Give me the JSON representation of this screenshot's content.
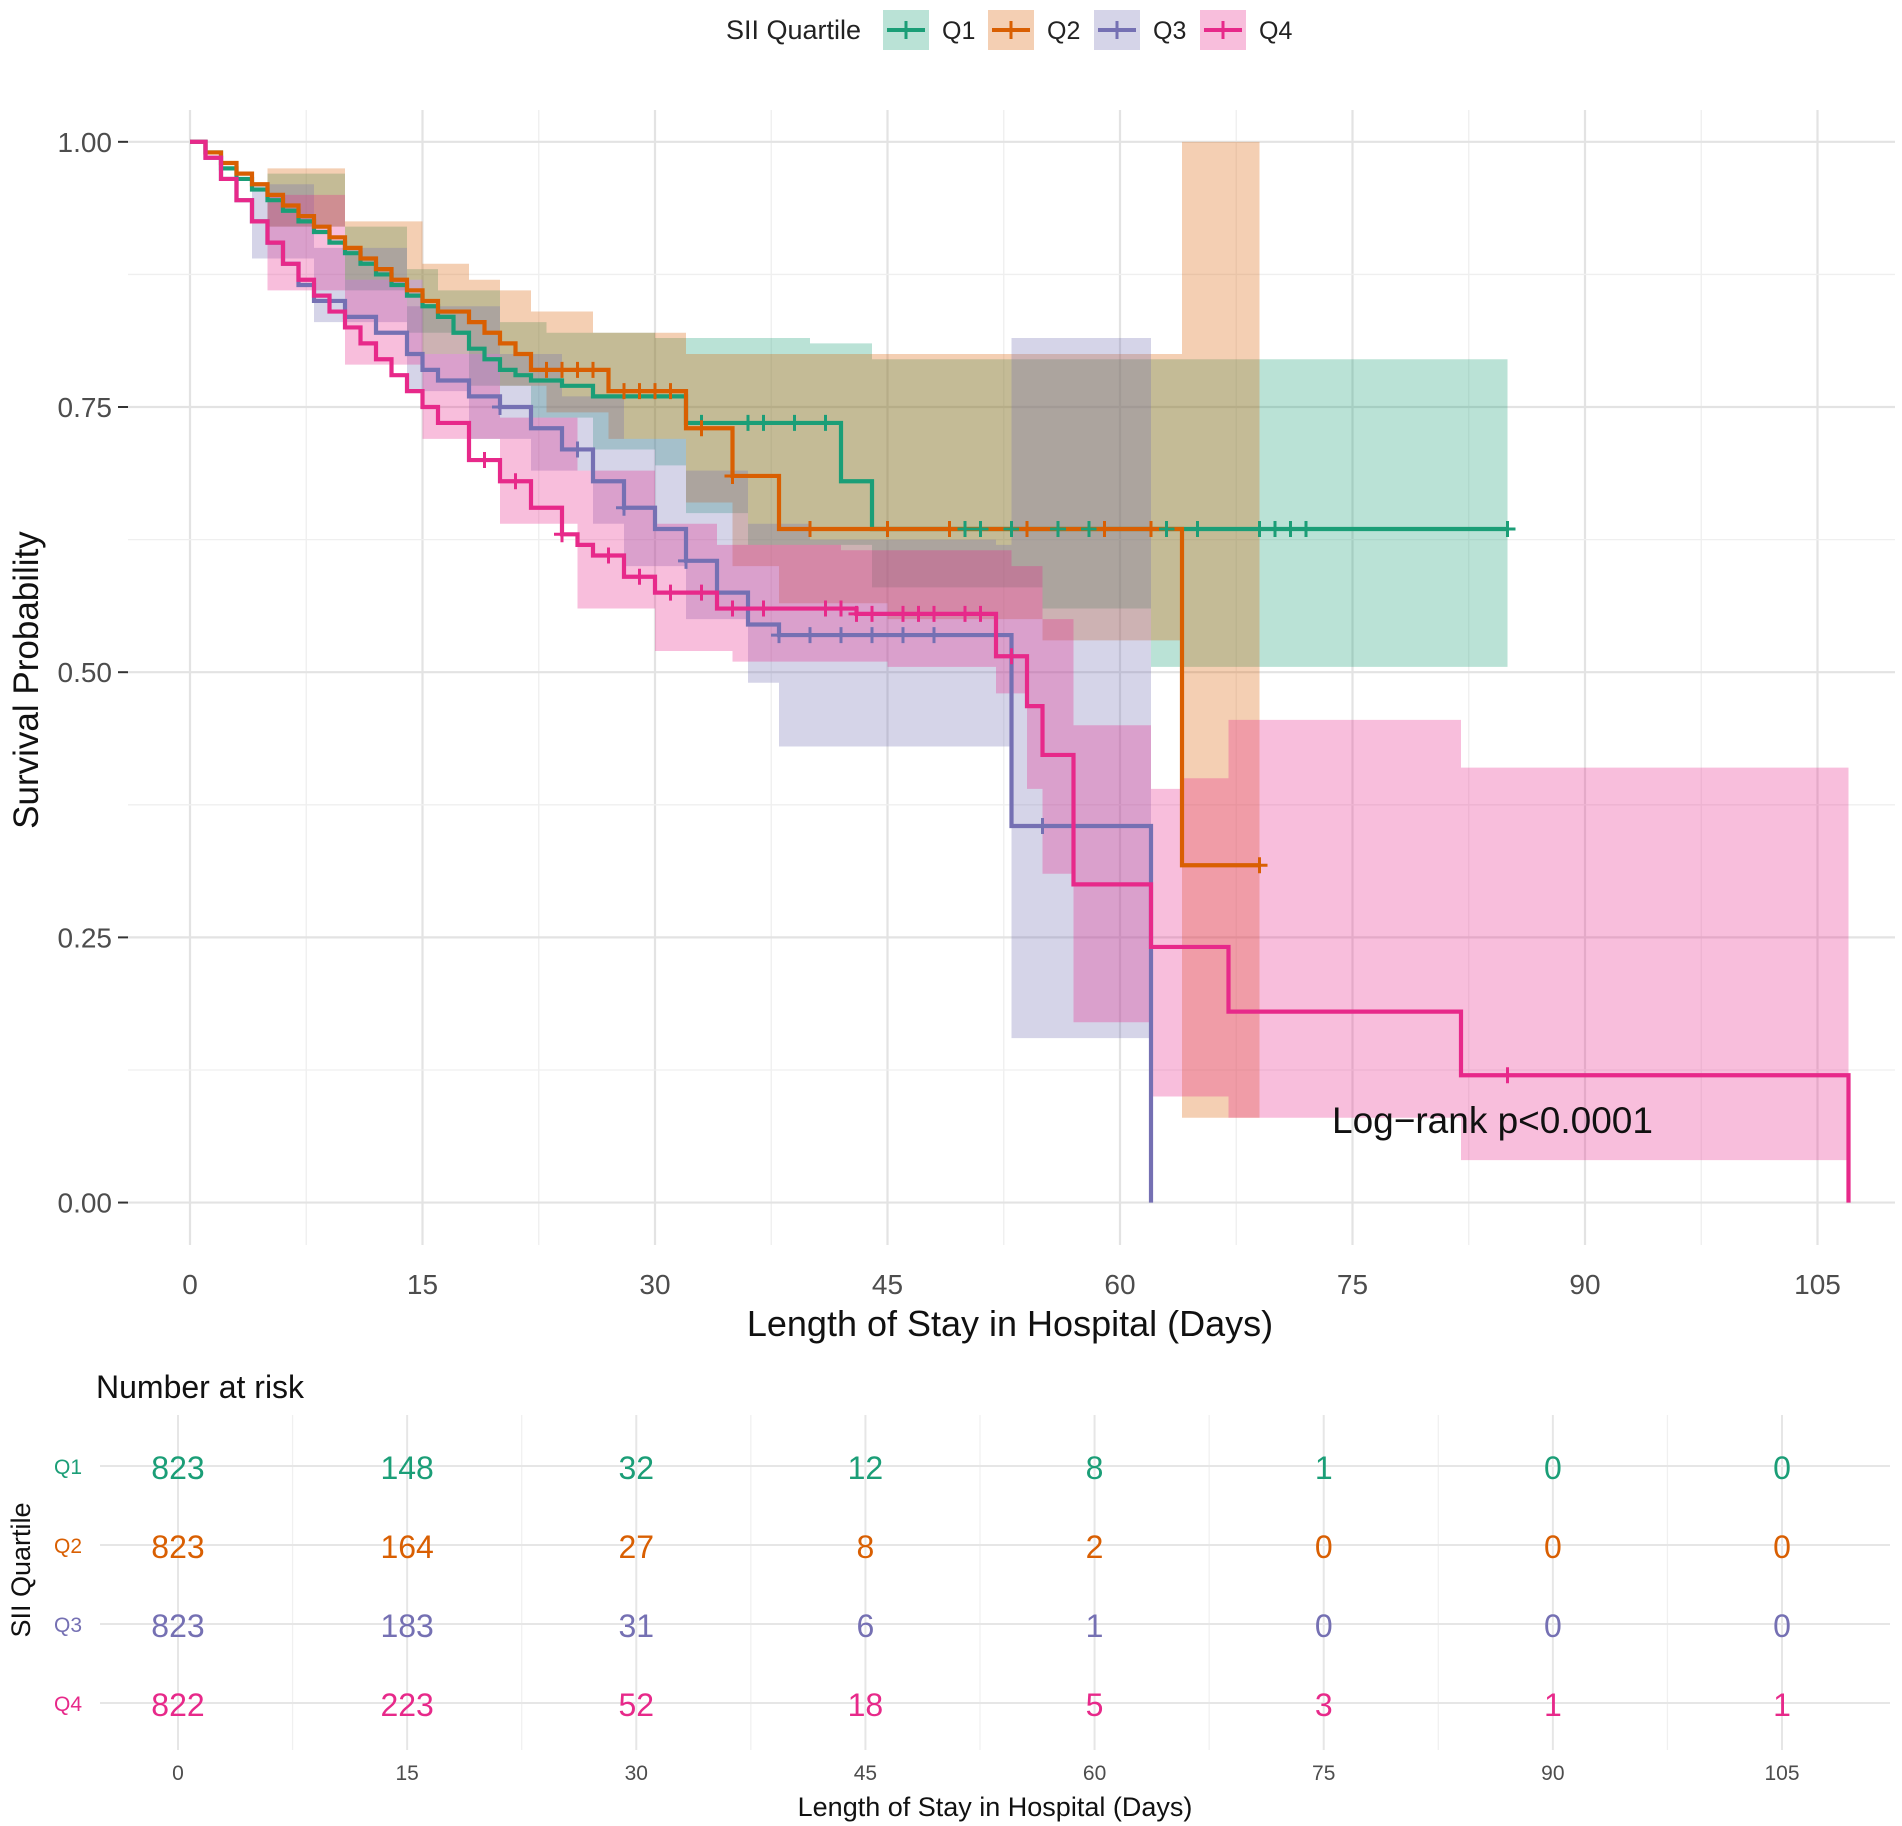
{
  "chart_data": [
    {
      "type": "line",
      "subtype": "kaplan-meier",
      "title": "",
      "xlabel": "Length of Stay in Hospital (Days)",
      "ylabel": "Survival Probability",
      "xlim": [
        -4,
        110
      ],
      "ylim": [
        -0.04,
        1.03
      ],
      "x_ticks": [
        0,
        15,
        30,
        45,
        60,
        75,
        90,
        105
      ],
      "x_tick_labels": [
        "0",
        "15",
        "30",
        "45",
        "60",
        "75",
        "90",
        "105"
      ],
      "y_ticks": [
        0,
        0.25,
        0.5,
        0.75,
        1
      ],
      "y_tick_labels": [
        "0.00",
        "0.25",
        "0.50",
        "0.75",
        "1.00"
      ],
      "grid": true,
      "legend": {
        "title": "SII Quartile",
        "position": "top",
        "labels": [
          "Q1",
          "Q2",
          "Q3",
          "Q4"
        ]
      },
      "annotation": "Log−rank p<0.0001",
      "series": [
        {
          "name": "Q1",
          "color": "#1b9e77",
          "steps": [
            [
              0,
              1.0
            ],
            [
              1,
              0.99
            ],
            [
              2,
              0.975
            ],
            [
              3,
              0.965
            ],
            [
              4,
              0.955
            ],
            [
              5,
              0.945
            ],
            [
              6,
              0.935
            ],
            [
              7,
              0.925
            ],
            [
              8,
              0.915
            ],
            [
              9,
              0.905
            ],
            [
              10,
              0.895
            ],
            [
              11,
              0.885
            ],
            [
              12,
              0.875
            ],
            [
              13,
              0.865
            ],
            [
              14,
              0.855
            ],
            [
              15,
              0.845
            ],
            [
              16,
              0.835
            ],
            [
              17,
              0.82
            ],
            [
              18,
              0.805
            ],
            [
              19,
              0.795
            ],
            [
              20,
              0.785
            ],
            [
              21,
              0.78
            ],
            [
              22,
              0.775
            ],
            [
              24,
              0.77
            ],
            [
              26,
              0.76
            ],
            [
              32,
              0.735
            ],
            [
              42,
              0.68
            ],
            [
              44,
              0.635
            ],
            [
              85,
              0.635
            ]
          ],
          "censored_x": [
            33,
            36,
            37,
            39,
            41,
            45,
            50,
            51,
            53,
            56,
            58,
            63,
            65,
            69,
            70,
            71,
            72,
            85
          ],
          "ci_upper": [
            [
              0,
              1.0
            ],
            [
              5,
              0.97
            ],
            [
              10,
              0.92
            ],
            [
              14,
              0.88
            ],
            [
              16,
              0.86
            ],
            [
              20,
              0.83
            ],
            [
              23,
              0.82
            ],
            [
              30,
              0.815
            ],
            [
              40,
              0.81
            ],
            [
              44,
              0.795
            ],
            [
              85,
              0.795
            ]
          ],
          "ci_lower": [
            [
              0,
              1.0
            ],
            [
              5,
              0.92
            ],
            [
              10,
              0.86
            ],
            [
              14,
              0.82
            ],
            [
              18,
              0.77
            ],
            [
              22,
              0.74
            ],
            [
              26,
              0.71
            ],
            [
              30,
              0.695
            ],
            [
              32,
              0.65
            ],
            [
              36,
              0.62
            ],
            [
              44,
              0.58
            ],
            [
              55,
              0.56
            ],
            [
              62,
              0.505
            ],
            [
              85,
              0.505
            ]
          ]
        },
        {
          "name": "Q2",
          "color": "#d95f02",
          "steps": [
            [
              0,
              1.0
            ],
            [
              1,
              0.99
            ],
            [
              2,
              0.98
            ],
            [
              3,
              0.97
            ],
            [
              4,
              0.96
            ],
            [
              5,
              0.95
            ],
            [
              6,
              0.94
            ],
            [
              7,
              0.93
            ],
            [
              8,
              0.92
            ],
            [
              9,
              0.91
            ],
            [
              10,
              0.9
            ],
            [
              11,
              0.89
            ],
            [
              12,
              0.88
            ],
            [
              13,
              0.87
            ],
            [
              14,
              0.86
            ],
            [
              15,
              0.85
            ],
            [
              16,
              0.84
            ],
            [
              18,
              0.83
            ],
            [
              19,
              0.82
            ],
            [
              20,
              0.81
            ],
            [
              21,
              0.8
            ],
            [
              22,
              0.785
            ],
            [
              27,
              0.765
            ],
            [
              32,
              0.73
            ],
            [
              35,
              0.685
            ],
            [
              38,
              0.635
            ],
            [
              64,
              0.318
            ],
            [
              69,
              0.318
            ]
          ],
          "censored_x": [
            23,
            24,
            25,
            26,
            28,
            29,
            30,
            31,
            33,
            35,
            40,
            45,
            49,
            54,
            59,
            62,
            69
          ],
          "ci_upper": [
            [
              0,
              1.0
            ],
            [
              5,
              0.975
            ],
            [
              10,
              0.925
            ],
            [
              15,
              0.885
            ],
            [
              18,
              0.87
            ],
            [
              20,
              0.86
            ],
            [
              22,
              0.84
            ],
            [
              26,
              0.82
            ],
            [
              32,
              0.8
            ],
            [
              38,
              0.8
            ],
            [
              64,
              1.0
            ],
            [
              69,
              1.0
            ]
          ],
          "ci_lower": [
            [
              0,
              1.0
            ],
            [
              5,
              0.92
            ],
            [
              10,
              0.87
            ],
            [
              15,
              0.8
            ],
            [
              20,
              0.77
            ],
            [
              23,
              0.745
            ],
            [
              27,
              0.72
            ],
            [
              32,
              0.66
            ],
            [
              35,
              0.6
            ],
            [
              38,
              0.565
            ],
            [
              45,
              0.55
            ],
            [
              55,
              0.53
            ],
            [
              64,
              0.08
            ],
            [
              69,
              0.08
            ]
          ]
        },
        {
          "name": "Q3",
          "color": "#7570b3",
          "steps": [
            [
              0,
              1.0
            ],
            [
              1,
              0.985
            ],
            [
              2,
              0.965
            ],
            [
              3,
              0.945
            ],
            [
              4,
              0.925
            ],
            [
              5,
              0.905
            ],
            [
              6,
              0.885
            ],
            [
              7,
              0.865
            ],
            [
              8,
              0.85
            ],
            [
              10,
              0.835
            ],
            [
              12,
              0.82
            ],
            [
              14,
              0.8
            ],
            [
              15,
              0.785
            ],
            [
              16,
              0.775
            ],
            [
              18,
              0.76
            ],
            [
              20,
              0.75
            ],
            [
              22,
              0.73
            ],
            [
              24,
              0.71
            ],
            [
              26,
              0.68
            ],
            [
              28,
              0.655
            ],
            [
              30,
              0.635
            ],
            [
              32,
              0.605
            ],
            [
              34,
              0.575
            ],
            [
              36,
              0.545
            ],
            [
              38,
              0.535
            ],
            [
              53,
              0.355
            ],
            [
              62,
              0.0
            ]
          ],
          "censored_x": [
            20,
            25,
            28,
            32,
            38,
            40,
            42,
            44,
            46,
            48,
            55
          ],
          "ci_upper": [
            [
              0,
              1.0
            ],
            [
              4,
              0.96
            ],
            [
              8,
              0.9
            ],
            [
              14,
              0.845
            ],
            [
              20,
              0.8
            ],
            [
              24,
              0.76
            ],
            [
              28,
              0.72
            ],
            [
              32,
              0.69
            ],
            [
              36,
              0.64
            ],
            [
              40,
              0.625
            ],
            [
              52,
              0.62
            ],
            [
              53,
              0.815
            ],
            [
              62,
              0.815
            ]
          ],
          "ci_lower": [
            [
              0,
              1.0
            ],
            [
              4,
              0.89
            ],
            [
              8,
              0.83
            ],
            [
              14,
              0.765
            ],
            [
              18,
              0.72
            ],
            [
              22,
              0.69
            ],
            [
              26,
              0.64
            ],
            [
              28,
              0.6
            ],
            [
              32,
              0.55
            ],
            [
              36,
              0.49
            ],
            [
              38,
              0.43
            ],
            [
              52,
              0.43
            ],
            [
              53,
              0.155
            ],
            [
              62,
              0.155
            ]
          ]
        },
        {
          "name": "Q4",
          "color": "#e7298a",
          "steps": [
            [
              0,
              1.0
            ],
            [
              1,
              0.985
            ],
            [
              2,
              0.965
            ],
            [
              3,
              0.945
            ],
            [
              4,
              0.925
            ],
            [
              5,
              0.905
            ],
            [
              6,
              0.885
            ],
            [
              7,
              0.87
            ],
            [
              8,
              0.855
            ],
            [
              9,
              0.84
            ],
            [
              10,
              0.825
            ],
            [
              11,
              0.81
            ],
            [
              12,
              0.795
            ],
            [
              13,
              0.78
            ],
            [
              14,
              0.765
            ],
            [
              15,
              0.75
            ],
            [
              16,
              0.735
            ],
            [
              18,
              0.7
            ],
            [
              20,
              0.68
            ],
            [
              22,
              0.655
            ],
            [
              24,
              0.63
            ],
            [
              25,
              0.62
            ],
            [
              26,
              0.61
            ],
            [
              28,
              0.59
            ],
            [
              30,
              0.575
            ],
            [
              34,
              0.56
            ],
            [
              43,
              0.555
            ],
            [
              52,
              0.515
            ],
            [
              54,
              0.468
            ],
            [
              55,
              0.422
            ],
            [
              57,
              0.3
            ],
            [
              62,
              0.241
            ],
            [
              67,
              0.18
            ],
            [
              82,
              0.12
            ],
            [
              107,
              0.0
            ]
          ],
          "censored_x": [
            19,
            21,
            24,
            27,
            29,
            31,
            33,
            35,
            37,
            41,
            42,
            43,
            44,
            46,
            47,
            48,
            50,
            51,
            53,
            85
          ],
          "ci_upper": [
            [
              0,
              1.0
            ],
            [
              5,
              0.95
            ],
            [
              10,
              0.87
            ],
            [
              15,
              0.8
            ],
            [
              20,
              0.74
            ],
            [
              25,
              0.69
            ],
            [
              30,
              0.64
            ],
            [
              34,
              0.62
            ],
            [
              42,
              0.615
            ],
            [
              53,
              0.6
            ],
            [
              55,
              0.55
            ],
            [
              57,
              0.45
            ],
            [
              62,
              0.39
            ],
            [
              64,
              0.4
            ],
            [
              67,
              0.455
            ],
            [
              82,
              0.41
            ],
            [
              107,
              0.41
            ]
          ],
          "ci_lower": [
            [
              0,
              1.0
            ],
            [
              5,
              0.86
            ],
            [
              10,
              0.79
            ],
            [
              15,
              0.72
            ],
            [
              20,
              0.64
            ],
            [
              25,
              0.56
            ],
            [
              30,
              0.52
            ],
            [
              35,
              0.51
            ],
            [
              45,
              0.505
            ],
            [
              52,
              0.48
            ],
            [
              54,
              0.39
            ],
            [
              55,
              0.31
            ],
            [
              57,
              0.17
            ],
            [
              62,
              0.1
            ],
            [
              67,
              0.08
            ],
            [
              82,
              0.04
            ],
            [
              107,
              0.04
            ]
          ]
        }
      ]
    },
    {
      "type": "table",
      "title": "Number at risk",
      "xlabel": "Length of Stay in Hospital (Days)",
      "ylabel": "SII Quartile",
      "columns": [
        "0",
        "15",
        "30",
        "45",
        "60",
        "75",
        "90",
        "105"
      ],
      "rows": [
        {
          "name": "Q1",
          "color": "#1b9e77",
          "values": [
            823,
            148,
            32,
            12,
            8,
            1,
            0,
            0
          ]
        },
        {
          "name": "Q2",
          "color": "#d95f02",
          "values": [
            823,
            164,
            27,
            8,
            2,
            0,
            0,
            0
          ]
        },
        {
          "name": "Q3",
          "color": "#7570b3",
          "values": [
            823,
            183,
            31,
            6,
            1,
            0,
            0,
            0
          ]
        },
        {
          "name": "Q4",
          "color": "#e7298a",
          "values": [
            822,
            223,
            52,
            18,
            5,
            3,
            1,
            1
          ]
        }
      ]
    }
  ]
}
